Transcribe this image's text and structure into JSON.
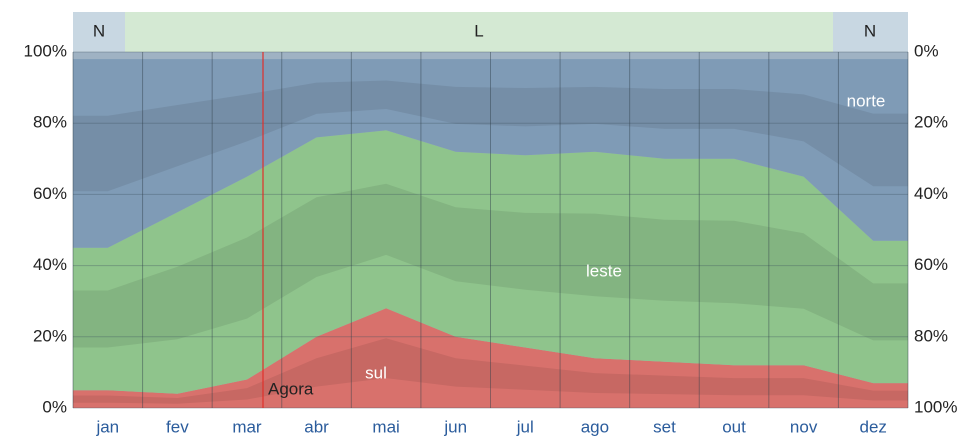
{
  "chart_data": {
    "type": "stacked_area",
    "categories": [
      "jan",
      "fev",
      "mar",
      "abr",
      "mai",
      "jun",
      "jul",
      "ago",
      "set",
      "out",
      "nov",
      "dez"
    ],
    "series": [
      {
        "name": "sul",
        "color": "#d8716c",
        "values": [
          5,
          4,
          8,
          20,
          28,
          20,
          17,
          14,
          13,
          12,
          12,
          7
        ]
      },
      {
        "name": "leste",
        "color": "#8fc48c",
        "values": [
          40,
          51,
          57,
          56,
          50,
          52,
          54,
          58,
          57,
          58,
          53,
          40
        ]
      },
      {
        "name": "norte",
        "color": "#7f9bb6",
        "values": [
          53,
          43,
          33,
          22,
          20,
          26,
          27,
          26,
          28,
          28,
          33,
          51
        ]
      }
    ],
    "ylim": [
      0,
      100
    ],
    "yticks": [
      {
        "value": 0,
        "label": "0%"
      },
      {
        "value": 20,
        "label": "20%"
      },
      {
        "value": 40,
        "label": "40%"
      },
      {
        "value": 60,
        "label": "60%"
      },
      {
        "value": 80,
        "label": "80%"
      },
      {
        "value": 100,
        "label": "100%"
      }
    ],
    "y2lim": [
      100,
      0
    ],
    "y2ticks": [
      {
        "value": 0,
        "label": "0%"
      },
      {
        "value": 20,
        "label": "20%"
      },
      {
        "value": 40,
        "label": "40%"
      },
      {
        "value": 60,
        "label": "60%"
      },
      {
        "value": 80,
        "label": "80%"
      },
      {
        "value": 100,
        "label": "100%"
      }
    ],
    "grid": true,
    "top_band": [
      "N",
      "L",
      "N"
    ],
    "annotation": "Agora"
  }
}
